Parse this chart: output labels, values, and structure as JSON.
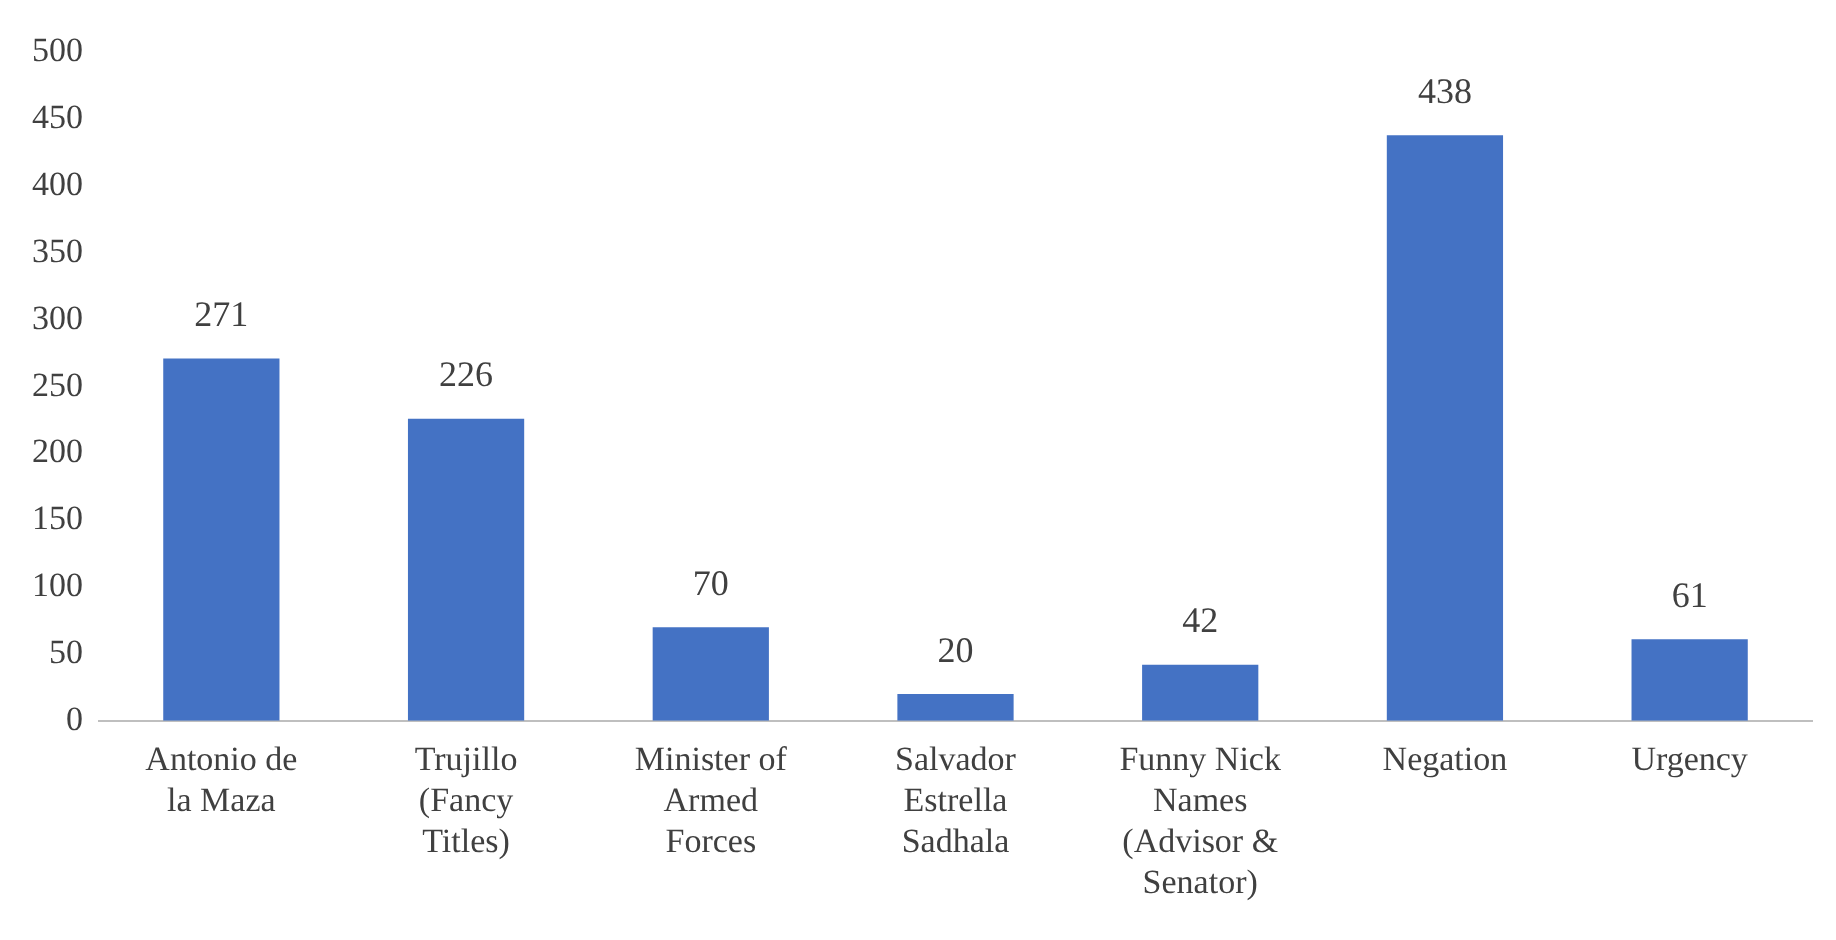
{
  "chart_data": {
    "type": "bar",
    "categories": [
      "Antonio de la Maza",
      "Trujillo (Fancy Titles)",
      "Minister of Armed Forces",
      "Salvador Estrella Sadhala",
      "Funny Nick Names (Advisor & Senator)",
      "Negation",
      "Urgency"
    ],
    "values": [
      271,
      226,
      70,
      20,
      42,
      438,
      61
    ],
    "color": "#4472c4",
    "ylim": [
      0,
      500
    ],
    "yticks": [
      0,
      50,
      100,
      150,
      200,
      250,
      300,
      350,
      400,
      450,
      500
    ],
    "grid": false,
    "legend": false,
    "data_labels": true
  }
}
